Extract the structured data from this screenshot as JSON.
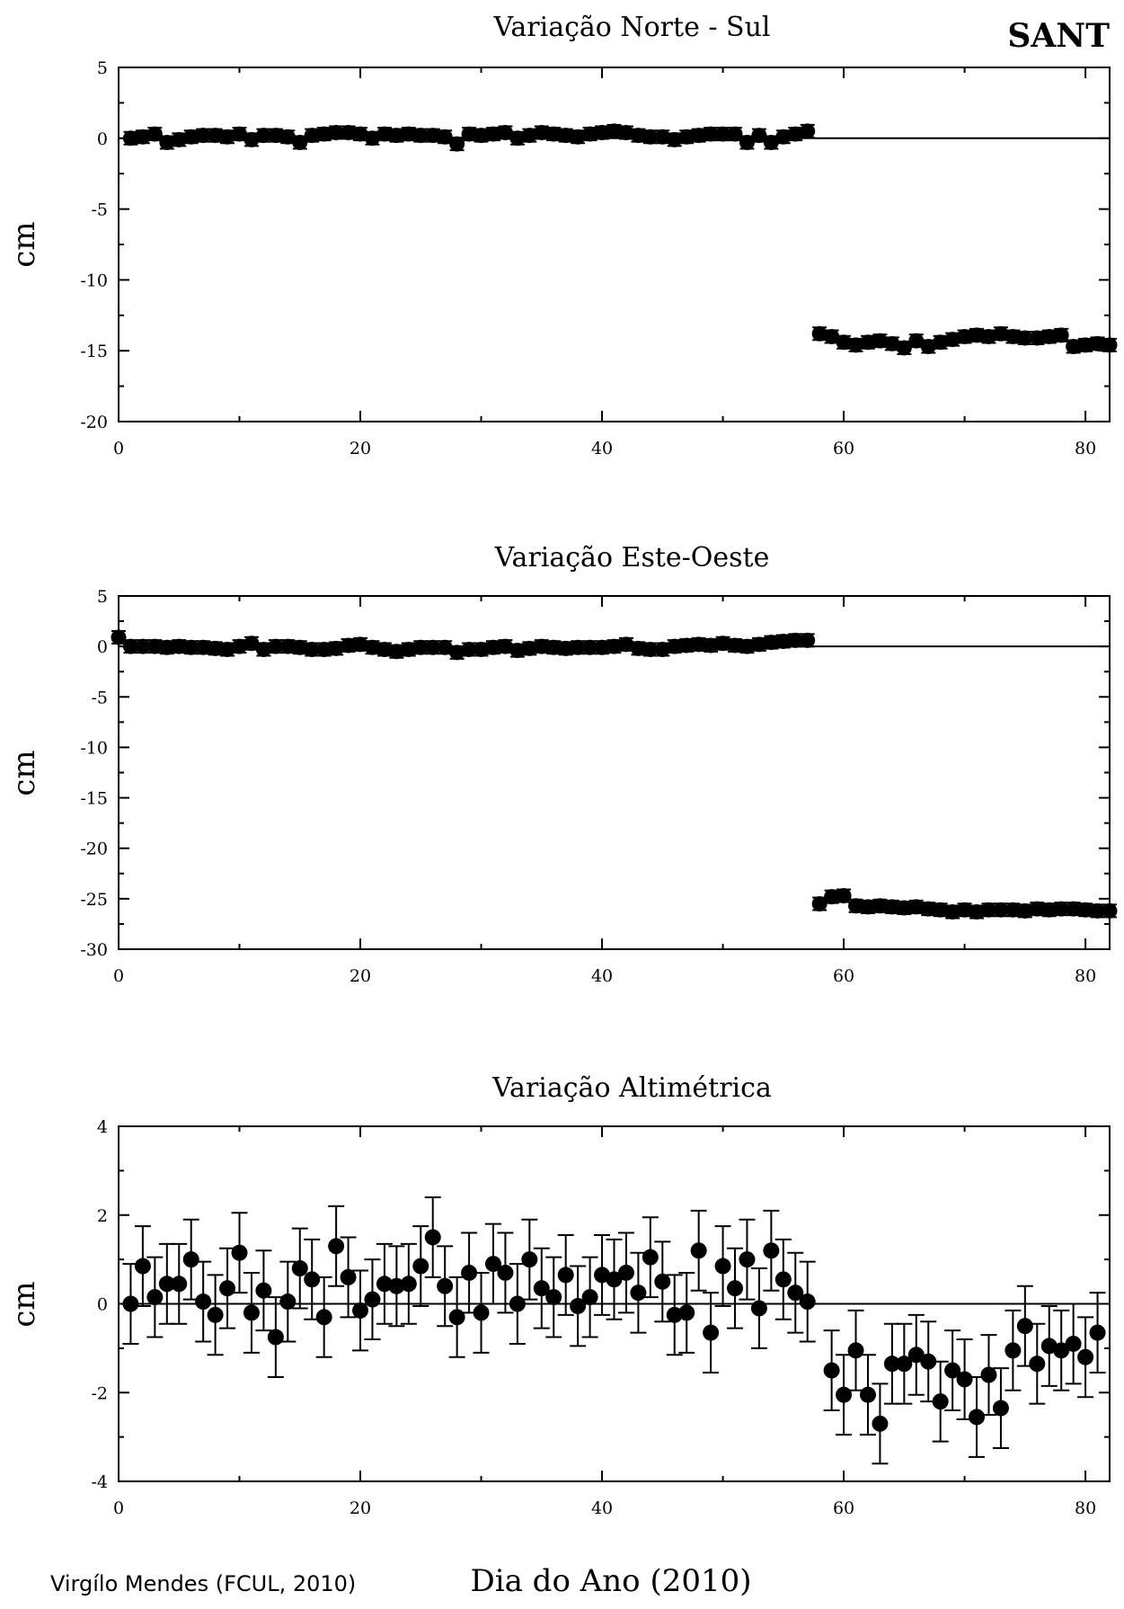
{
  "station": "SANT",
  "credit": "Virgílo Mendes (FCUL, 2010)",
  "xlabel": "Dia do Ano (2010)",
  "colors": {
    "marker": "#000000",
    "axis": "#000000",
    "background": "#ffffff"
  },
  "chart_data": [
    {
      "type": "scatter",
      "title": "Variação Norte - Sul",
      "ylabel": "cm",
      "xlim": [
        0,
        82
      ],
      "ylim": [
        -20,
        5
      ],
      "xticks": [
        0,
        20,
        40,
        60,
        80
      ],
      "yticks": [
        5,
        0,
        -5,
        -10,
        -15,
        -20
      ],
      "error_bars": "small",
      "x": [
        1,
        2,
        3,
        4,
        5,
        6,
        7,
        8,
        9,
        10,
        11,
        12,
        13,
        14,
        15,
        16,
        17,
        18,
        19,
        20,
        21,
        22,
        23,
        24,
        25,
        26,
        27,
        28,
        29,
        30,
        31,
        32,
        33,
        34,
        35,
        36,
        37,
        38,
        39,
        40,
        41,
        42,
        43,
        44,
        45,
        46,
        47,
        48,
        49,
        50,
        51,
        52,
        53,
        54,
        55,
        56,
        57,
        58,
        59,
        60,
        61,
        62,
        63,
        64,
        65,
        66,
        67,
        68,
        69,
        70,
        71,
        72,
        73,
        74,
        75,
        76,
        77,
        78,
        79,
        80,
        81,
        82
      ],
      "y": [
        0.0,
        0.1,
        0.3,
        -0.3,
        -0.1,
        0.1,
        0.2,
        0.2,
        0.1,
        0.3,
        -0.1,
        0.2,
        0.2,
        0.1,
        -0.3,
        0.2,
        0.3,
        0.4,
        0.4,
        0.3,
        0.0,
        0.3,
        0.2,
        0.3,
        0.2,
        0.2,
        0.1,
        -0.4,
        0.3,
        0.2,
        0.3,
        0.4,
        0.0,
        0.2,
        0.4,
        0.3,
        0.2,
        0.1,
        0.3,
        0.4,
        0.5,
        0.4,
        0.2,
        0.1,
        0.1,
        -0.1,
        0.1,
        0.2,
        0.3,
        0.3,
        0.3,
        -0.3,
        0.2,
        -0.3,
        0.1,
        0.3,
        0.5,
        -13.8,
        -14.0,
        -14.4,
        -14.6,
        -14.4,
        -14.3,
        -14.5,
        -14.8,
        -14.3,
        -14.7,
        -14.4,
        -14.2,
        -14.0,
        -13.9,
        -14.0,
        -13.8,
        -14.0,
        -14.1,
        -14.1,
        -14.0,
        -13.9,
        -14.7,
        -14.6,
        -14.5,
        -14.6
      ]
    },
    {
      "type": "scatter",
      "title": "Variação Este-Oeste",
      "ylabel": "cm",
      "xlim": [
        0,
        82
      ],
      "ylim": [
        -30,
        5
      ],
      "xticks": [
        0,
        20,
        40,
        60,
        80
      ],
      "yticks": [
        5,
        0,
        -5,
        -10,
        -15,
        -20,
        -25,
        -30
      ],
      "error_bars": "small",
      "x": [
        0,
        1,
        2,
        3,
        4,
        5,
        6,
        7,
        8,
        9,
        10,
        11,
        12,
        13,
        14,
        15,
        16,
        17,
        18,
        19,
        20,
        21,
        22,
        23,
        24,
        25,
        26,
        27,
        28,
        29,
        30,
        31,
        32,
        33,
        34,
        35,
        36,
        37,
        38,
        39,
        40,
        41,
        42,
        43,
        44,
        45,
        46,
        47,
        48,
        49,
        50,
        51,
        52,
        53,
        54,
        55,
        56,
        57,
        58,
        59,
        60,
        61,
        62,
        63,
        64,
        65,
        66,
        67,
        68,
        69,
        70,
        71,
        72,
        73,
        74,
        75,
        76,
        77,
        78,
        79,
        80,
        81,
        82
      ],
      "y": [
        0.9,
        0.0,
        0.0,
        0.0,
        -0.1,
        0.0,
        -0.1,
        -0.1,
        -0.2,
        -0.3,
        0.0,
        0.3,
        -0.3,
        0.0,
        0.0,
        -0.1,
        -0.3,
        -0.3,
        -0.2,
        0.1,
        0.2,
        -0.1,
        -0.3,
        -0.5,
        -0.3,
        -0.1,
        -0.1,
        -0.1,
        -0.6,
        -0.3,
        -0.3,
        -0.1,
        0.0,
        -0.4,
        -0.2,
        0.0,
        -0.1,
        -0.2,
        -0.1,
        -0.1,
        -0.1,
        0.0,
        0.2,
        -0.2,
        -0.3,
        -0.3,
        0.0,
        0.1,
        0.2,
        0.1,
        0.3,
        0.1,
        0.0,
        0.2,
        0.4,
        0.5,
        0.6,
        0.6,
        -25.5,
        -24.8,
        -24.7,
        -25.7,
        -25.8,
        -25.7,
        -25.8,
        -25.9,
        -25.8,
        -26.0,
        -26.1,
        -26.3,
        -26.1,
        -26.3,
        -26.1,
        -26.1,
        -26.1,
        -26.2,
        -26.0,
        -26.1,
        -26.0,
        -26.0,
        -26.1,
        -26.2,
        -26.2
      ]
    },
    {
      "type": "scatter",
      "title": "Variação Altimétrica",
      "ylabel": "cm",
      "xlim": [
        0,
        82
      ],
      "ylim": [
        -4,
        4
      ],
      "xticks": [
        0,
        20,
        40,
        60,
        80
      ],
      "yticks": [
        4,
        2,
        0,
        -2,
        -4
      ],
      "error_bars": "large",
      "x": [
        1,
        2,
        3,
        4,
        5,
        6,
        7,
        8,
        9,
        10,
        11,
        12,
        13,
        14,
        15,
        16,
        17,
        18,
        19,
        20,
        21,
        22,
        23,
        24,
        25,
        26,
        27,
        28,
        29,
        30,
        31,
        32,
        33,
        34,
        35,
        36,
        37,
        38,
        39,
        40,
        41,
        42,
        43,
        44,
        45,
        46,
        47,
        48,
        49,
        50,
        51,
        52,
        53,
        54,
        55,
        56,
        57,
        59,
        60,
        61,
        62,
        63,
        64,
        65,
        66,
        67,
        68,
        69,
        70,
        71,
        72,
        73,
        74,
        75,
        76,
        77,
        78,
        79,
        80,
        81
      ],
      "y": [
        0.0,
        0.85,
        0.15,
        0.45,
        0.45,
        1.0,
        0.05,
        -0.25,
        0.35,
        1.15,
        -0.2,
        0.3,
        -0.75,
        0.05,
        0.8,
        0.55,
        -0.3,
        1.3,
        0.6,
        -0.15,
        0.1,
        0.45,
        0.4,
        0.45,
        0.85,
        1.5,
        0.4,
        -0.3,
        0.7,
        -0.2,
        0.9,
        0.7,
        0.0,
        1.0,
        0.35,
        0.15,
        0.65,
        -0.05,
        0.15,
        0.65,
        0.55,
        0.7,
        0.25,
        1.05,
        0.5,
        -0.25,
        -0.2,
        1.2,
        -0.65,
        0.85,
        0.35,
        1.0,
        -0.1,
        1.2,
        0.55,
        0.25,
        0.05,
        -1.5,
        -2.05,
        -1.05,
        -2.05,
        -2.7,
        -1.35,
        -1.35,
        -1.15,
        -1.3,
        -2.2,
        -1.5,
        -1.7,
        -2.55,
        -1.6,
        -2.35,
        -1.05,
        -0.5,
        -1.35,
        -0.95,
        -1.05,
        -0.9,
        -1.2,
        -0.65
      ],
      "err": 0.9
    }
  ]
}
